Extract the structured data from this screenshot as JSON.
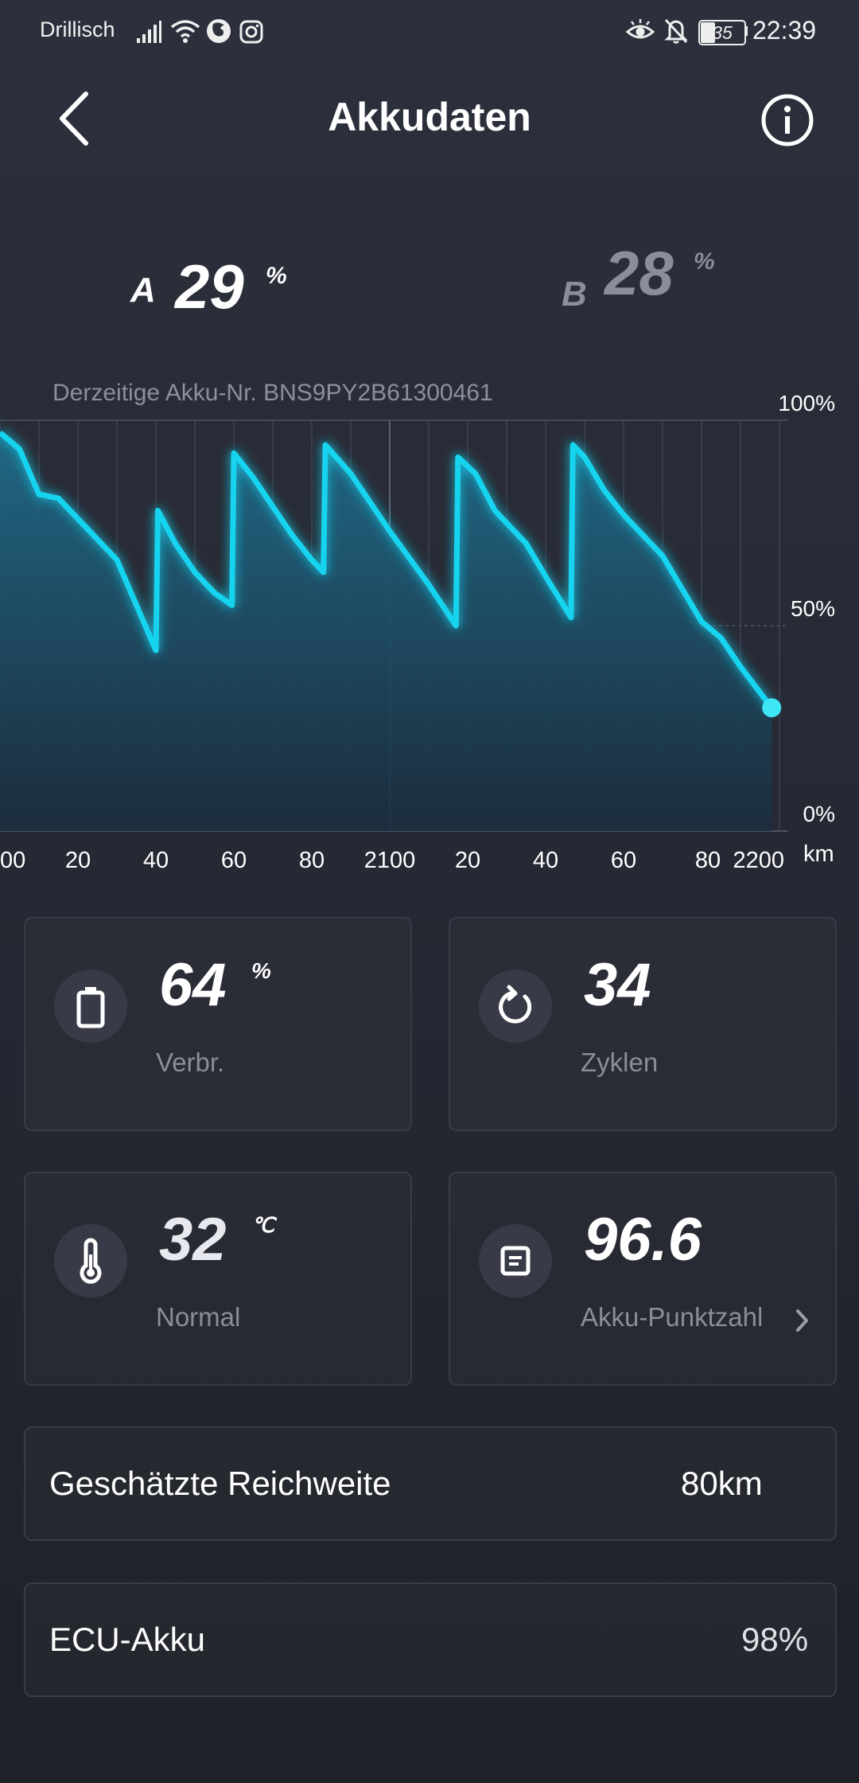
{
  "status_bar": {
    "carrier": "Drillisch",
    "battery_level": "35",
    "time": "22:39",
    "icons": [
      "signal-icon",
      "wifi-icon",
      "firefox-icon",
      "instagram-icon",
      "eye-icon",
      "bell-off-icon",
      "battery-icon"
    ]
  },
  "header": {
    "title": "Akkudaten",
    "back_icon": "back-arrow-icon",
    "info_icon": "info-icon"
  },
  "batteries": {
    "a": {
      "letter": "A",
      "value": "29",
      "unit": "%"
    },
    "b": {
      "letter": "B",
      "value": "28",
      "unit": "%"
    }
  },
  "chart_caption": "Derzeitige Akku-Nr. BNS9PY2B61300461",
  "chart_data": {
    "type": "area",
    "x_unit": "km",
    "x_tick_labels": [
      "00",
      "20",
      "40",
      "60",
      "80",
      "2100",
      "20",
      "40",
      "60",
      "80",
      "2200"
    ],
    "y_tick_labels": [
      "100%",
      "50%",
      "0%"
    ],
    "ylim": [
      0,
      100
    ],
    "xlim": [
      2000,
      2200
    ],
    "grid": true,
    "color": "#17d4ef",
    "x": [
      2000,
      2005,
      2010,
      2015,
      2020,
      2030,
      2040,
      2040.5,
      2045,
      2050,
      2055,
      2059.5,
      2060,
      2065,
      2070,
      2075,
      2080,
      2083,
      2083.5,
      2090,
      2095,
      2100,
      2110,
      2117,
      2117.5,
      2122,
      2127,
      2135,
      2140,
      2146.5,
      2147,
      2150,
      2155,
      2160,
      2165,
      2170,
      2175,
      2180,
      2185,
      2190,
      2198
    ],
    "y": [
      97,
      93,
      82,
      81,
      76,
      66,
      44,
      78,
      70,
      63,
      58,
      55,
      92,
      86,
      79,
      72,
      66,
      63,
      94,
      87,
      80,
      73,
      60,
      50,
      91,
      87,
      78,
      70,
      62,
      52,
      94,
      91,
      83,
      77,
      72,
      67,
      59,
      51,
      47,
      40,
      30
    ]
  },
  "stats": {
    "consumption": {
      "value": "64",
      "unit": "%",
      "label": "Verbr.",
      "icon": "battery-icon"
    },
    "cycles": {
      "value": "34",
      "label": "Zyklen",
      "icon": "refresh-icon"
    },
    "temperature": {
      "value": "32",
      "unit": "℃",
      "label": "Normal",
      "icon": "thermometer-icon"
    },
    "score": {
      "value": "96.6",
      "label": "Akku-Punktzahl",
      "icon": "document-icon"
    }
  },
  "range": {
    "label": "Geschätzte Reichweite",
    "value": "80km"
  },
  "ecu": {
    "label": "ECU-Akku",
    "value": "98%"
  }
}
